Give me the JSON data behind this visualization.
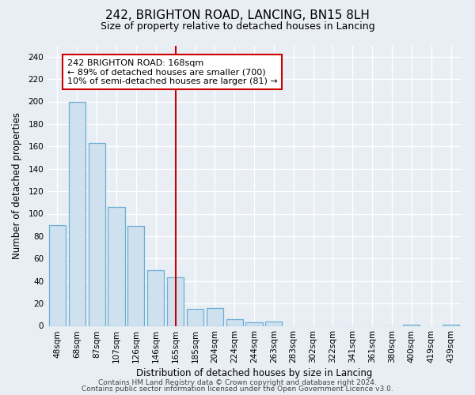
{
  "title": "242, BRIGHTON ROAD, LANCING, BN15 8LH",
  "subtitle": "Size of property relative to detached houses in Lancing",
  "xlabel": "Distribution of detached houses by size in Lancing",
  "ylabel": "Number of detached properties",
  "bar_labels": [
    "48sqm",
    "68sqm",
    "87sqm",
    "107sqm",
    "126sqm",
    "146sqm",
    "165sqm",
    "185sqm",
    "204sqm",
    "224sqm",
    "244sqm",
    "263sqm",
    "283sqm",
    "302sqm",
    "322sqm",
    "341sqm",
    "361sqm",
    "380sqm",
    "400sqm",
    "419sqm",
    "439sqm"
  ],
  "bar_values": [
    90,
    200,
    163,
    106,
    89,
    50,
    43,
    15,
    16,
    6,
    3,
    4,
    0,
    0,
    0,
    0,
    0,
    0,
    1,
    0,
    1
  ],
  "bar_color": "#cfe0ef",
  "bar_edgecolor": "#6aafd4",
  "vline_index": 6,
  "vline_color": "#cc0000",
  "ylim": [
    0,
    250
  ],
  "yticks": [
    0,
    20,
    40,
    60,
    80,
    100,
    120,
    140,
    160,
    180,
    200,
    220,
    240
  ],
  "annotation_title": "242 BRIGHTON ROAD: 168sqm",
  "annotation_line1": "← 89% of detached houses are smaller (700)",
  "annotation_line2": "10% of semi-detached houses are larger (81) →",
  "annotation_box_facecolor": "#ffffff",
  "annotation_box_edgecolor": "#cc0000",
  "footer1": "Contains HM Land Registry data © Crown copyright and database right 2024.",
  "footer2": "Contains public sector information licensed under the Open Government Licence v3.0.",
  "background_color": "#e8eef4",
  "plot_bg_color": "#e8eef4",
  "grid_color": "#ffffff",
  "title_fontsize": 11,
  "subtitle_fontsize": 9,
  "ylabel_fontsize": 8.5,
  "xlabel_fontsize": 8.5,
  "tick_fontsize": 7.5,
  "footer_fontsize": 6.5
}
